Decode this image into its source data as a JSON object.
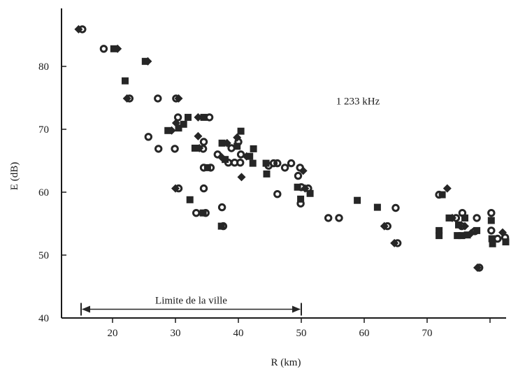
{
  "chart_data": {
    "type": "scatter",
    "title": "",
    "xlabel": "R (km)",
    "ylabel": "E (dB)",
    "xlim": [
      12,
      83
    ],
    "ylim": [
      40,
      89
    ],
    "xticks": [
      20,
      30,
      40,
      50,
      60,
      70,
      80
    ],
    "xtick_labels": [
      "20",
      "30",
      "40",
      "50",
      "60",
      "70",
      ""
    ],
    "yticks": [
      40,
      50,
      60,
      70,
      80
    ],
    "ytick_labels": [
      "40",
      "50",
      "60",
      "70",
      "80"
    ],
    "grid": false,
    "legend": "none",
    "annotations": [
      {
        "text": "1 233 kHz",
        "x": 59,
        "y": 74.5
      },
      {
        "text": "Limite de la ville",
        "x": 15,
        "x_end": 50,
        "y": 42.5,
        "style": "double-arrow"
      }
    ],
    "series": [
      {
        "points": [
          {
            "x": 14.6,
            "y": 85.9,
            "m": "diamond"
          },
          {
            "x": 15.2,
            "y": 85.9,
            "m": "circle"
          },
          {
            "x": 18.6,
            "y": 82.8,
            "m": "circle"
          },
          {
            "x": 20.2,
            "y": 82.8,
            "m": "square"
          },
          {
            "x": 20.8,
            "y": 82.8,
            "m": "diamond"
          },
          {
            "x": 25.2,
            "y": 80.8,
            "m": "square"
          },
          {
            "x": 25.6,
            "y": 80.8,
            "m": "diamond"
          },
          {
            "x": 22.0,
            "y": 77.7,
            "m": "square"
          },
          {
            "x": 22.3,
            "y": 74.9,
            "m": "diamond"
          },
          {
            "x": 22.7,
            "y": 74.9,
            "m": "circle"
          },
          {
            "x": 27.2,
            "y": 74.9,
            "m": "circle"
          },
          {
            "x": 30.1,
            "y": 74.9,
            "m": "circle"
          },
          {
            "x": 30.5,
            "y": 74.9,
            "m": "diamond"
          },
          {
            "x": 30.4,
            "y": 71.9,
            "m": "circle"
          },
          {
            "x": 32.0,
            "y": 71.9,
            "m": "square"
          },
          {
            "x": 33.6,
            "y": 71.9,
            "m": "diamond"
          },
          {
            "x": 34.5,
            "y": 71.9,
            "m": "square"
          },
          {
            "x": 35.4,
            "y": 71.9,
            "m": "circle"
          },
          {
            "x": 30.1,
            "y": 71.0,
            "m": "diamond"
          },
          {
            "x": 30.5,
            "y": 70.2,
            "m": "square"
          },
          {
            "x": 31.3,
            "y": 70.8,
            "m": "square"
          },
          {
            "x": 28.8,
            "y": 69.8,
            "m": "square"
          },
          {
            "x": 29.4,
            "y": 69.8,
            "m": "diamond"
          },
          {
            "x": 25.7,
            "y": 68.8,
            "m": "circle"
          },
          {
            "x": 33.6,
            "y": 68.9,
            "m": "diamond"
          },
          {
            "x": 34.5,
            "y": 68.0,
            "m": "circle"
          },
          {
            "x": 40.4,
            "y": 69.7,
            "m": "square"
          },
          {
            "x": 39.8,
            "y": 68.7,
            "m": "diamond"
          },
          {
            "x": 40.0,
            "y": 68.0,
            "m": "circle"
          },
          {
            "x": 27.3,
            "y": 66.9,
            "m": "circle"
          },
          {
            "x": 29.9,
            "y": 66.9,
            "m": "circle"
          },
          {
            "x": 33.1,
            "y": 67.0,
            "m": "square"
          },
          {
            "x": 33.8,
            "y": 67.0,
            "m": "diamond"
          },
          {
            "x": 34.4,
            "y": 66.9,
            "m": "circle"
          },
          {
            "x": 37.4,
            "y": 67.8,
            "m": "square"
          },
          {
            "x": 38.2,
            "y": 67.8,
            "m": "diamond"
          },
          {
            "x": 38.9,
            "y": 67.0,
            "m": "circle"
          },
          {
            "x": 39.8,
            "y": 67.3,
            "m": "square"
          },
          {
            "x": 42.4,
            "y": 66.9,
            "m": "square"
          },
          {
            "x": 36.7,
            "y": 66.0,
            "m": "circle"
          },
          {
            "x": 37.3,
            "y": 65.6,
            "m": "diamond"
          },
          {
            "x": 40.4,
            "y": 66.0,
            "m": "circle"
          },
          {
            "x": 41.3,
            "y": 65.7,
            "m": "diamond"
          },
          {
            "x": 41.8,
            "y": 65.7,
            "m": "square"
          },
          {
            "x": 37.9,
            "y": 65.2,
            "m": "square"
          },
          {
            "x": 38.4,
            "y": 64.7,
            "m": "circle"
          },
          {
            "x": 39.4,
            "y": 64.7,
            "m": "circle"
          },
          {
            "x": 40.3,
            "y": 64.7,
            "m": "circle"
          },
          {
            "x": 42.3,
            "y": 64.6,
            "m": "square"
          },
          {
            "x": 34.5,
            "y": 63.9,
            "m": "circle"
          },
          {
            "x": 35.1,
            "y": 63.9,
            "m": "square"
          },
          {
            "x": 35.6,
            "y": 63.9,
            "m": "circle"
          },
          {
            "x": 44.4,
            "y": 64.6,
            "m": "square"
          },
          {
            "x": 44.8,
            "y": 64.2,
            "m": "circle"
          },
          {
            "x": 45.6,
            "y": 64.6,
            "m": "circle"
          },
          {
            "x": 46.2,
            "y": 64.6,
            "m": "circle"
          },
          {
            "x": 47.4,
            "y": 63.9,
            "m": "circle"
          },
          {
            "x": 48.4,
            "y": 64.6,
            "m": "circle"
          },
          {
            "x": 49.8,
            "y": 63.9,
            "m": "circle"
          },
          {
            "x": 50.3,
            "y": 63.4,
            "m": "diamond"
          },
          {
            "x": 44.5,
            "y": 62.9,
            "m": "square"
          },
          {
            "x": 49.5,
            "y": 62.6,
            "m": "circle"
          },
          {
            "x": 40.5,
            "y": 62.4,
            "m": "diamond"
          },
          {
            "x": 30.0,
            "y": 60.6,
            "m": "diamond"
          },
          {
            "x": 30.5,
            "y": 60.6,
            "m": "circle"
          },
          {
            "x": 34.5,
            "y": 60.6,
            "m": "circle"
          },
          {
            "x": 49.4,
            "y": 60.8,
            "m": "square"
          },
          {
            "x": 50.0,
            "y": 60.8,
            "m": "circle"
          },
          {
            "x": 50.6,
            "y": 60.6,
            "m": "diamond"
          },
          {
            "x": 51.1,
            "y": 60.6,
            "m": "circle"
          },
          {
            "x": 46.2,
            "y": 59.7,
            "m": "circle"
          },
          {
            "x": 51.4,
            "y": 59.8,
            "m": "square"
          },
          {
            "x": 49.9,
            "y": 58.9,
            "m": "square"
          },
          {
            "x": 49.9,
            "y": 58.2,
            "m": "circle"
          },
          {
            "x": 32.3,
            "y": 58.8,
            "m": "square"
          },
          {
            "x": 37.4,
            "y": 57.6,
            "m": "circle"
          },
          {
            "x": 33.3,
            "y": 56.7,
            "m": "circle"
          },
          {
            "x": 34.4,
            "y": 56.7,
            "m": "square"
          },
          {
            "x": 34.8,
            "y": 56.7,
            "m": "circle"
          },
          {
            "x": 37.3,
            "y": 54.6,
            "m": "square"
          },
          {
            "x": 37.6,
            "y": 54.6,
            "m": "circle"
          },
          {
            "x": 54.3,
            "y": 55.9,
            "m": "circle"
          },
          {
            "x": 56.0,
            "y": 55.9,
            "m": "circle"
          },
          {
            "x": 58.9,
            "y": 58.7,
            "m": "square"
          },
          {
            "x": 62.1,
            "y": 57.6,
            "m": "square"
          },
          {
            "x": 65.0,
            "y": 57.5,
            "m": "circle"
          },
          {
            "x": 63.2,
            "y": 54.6,
            "m": "diamond"
          },
          {
            "x": 63.7,
            "y": 54.6,
            "m": "circle"
          },
          {
            "x": 64.8,
            "y": 51.9,
            "m": "diamond"
          },
          {
            "x": 65.3,
            "y": 51.9,
            "m": "circle"
          },
          {
            "x": 71.9,
            "y": 59.6,
            "m": "circle"
          },
          {
            "x": 72.4,
            "y": 59.6,
            "m": "square"
          },
          {
            "x": 73.2,
            "y": 60.6,
            "m": "diamond"
          },
          {
            "x": 71.9,
            "y": 53.9,
            "m": "square"
          },
          {
            "x": 71.9,
            "y": 53.1,
            "m": "square"
          },
          {
            "x": 73.5,
            "y": 55.9,
            "m": "square"
          },
          {
            "x": 74.0,
            "y": 55.9,
            "m": "diamond"
          },
          {
            "x": 74.6,
            "y": 55.9,
            "m": "circle"
          },
          {
            "x": 75.6,
            "y": 56.7,
            "m": "circle"
          },
          {
            "x": 76.0,
            "y": 55.9,
            "m": "square"
          },
          {
            "x": 75.0,
            "y": 54.8,
            "m": "square"
          },
          {
            "x": 75.5,
            "y": 54.6,
            "m": "circle"
          },
          {
            "x": 76.0,
            "y": 54.6,
            "m": "diamond"
          },
          {
            "x": 74.8,
            "y": 53.1,
            "m": "square"
          },
          {
            "x": 75.5,
            "y": 53.1,
            "m": "square"
          },
          {
            "x": 76.4,
            "y": 53.2,
            "m": "square"
          },
          {
            "x": 77.0,
            "y": 53.5,
            "m": "diamond"
          },
          {
            "x": 77.6,
            "y": 53.8,
            "m": "circle"
          },
          {
            "x": 77.9,
            "y": 53.9,
            "m": "square"
          },
          {
            "x": 77.9,
            "y": 55.9,
            "m": "circle"
          },
          {
            "x": 80.2,
            "y": 56.7,
            "m": "circle"
          },
          {
            "x": 80.2,
            "y": 55.5,
            "m": "square"
          },
          {
            "x": 80.2,
            "y": 53.9,
            "m": "circle"
          },
          {
            "x": 80.3,
            "y": 52.6,
            "m": "square"
          },
          {
            "x": 80.4,
            "y": 51.8,
            "m": "square"
          },
          {
            "x": 81.2,
            "y": 52.6,
            "m": "circle"
          },
          {
            "x": 82.0,
            "y": 53.6,
            "m": "diamond"
          },
          {
            "x": 82.4,
            "y": 52.8,
            "m": "circle"
          },
          {
            "x": 82.5,
            "y": 52.1,
            "m": "square"
          },
          {
            "x": 78.0,
            "y": 48.0,
            "m": "diamond"
          },
          {
            "x": 78.3,
            "y": 48.0,
            "m": "circle"
          }
        ]
      }
    ]
  }
}
